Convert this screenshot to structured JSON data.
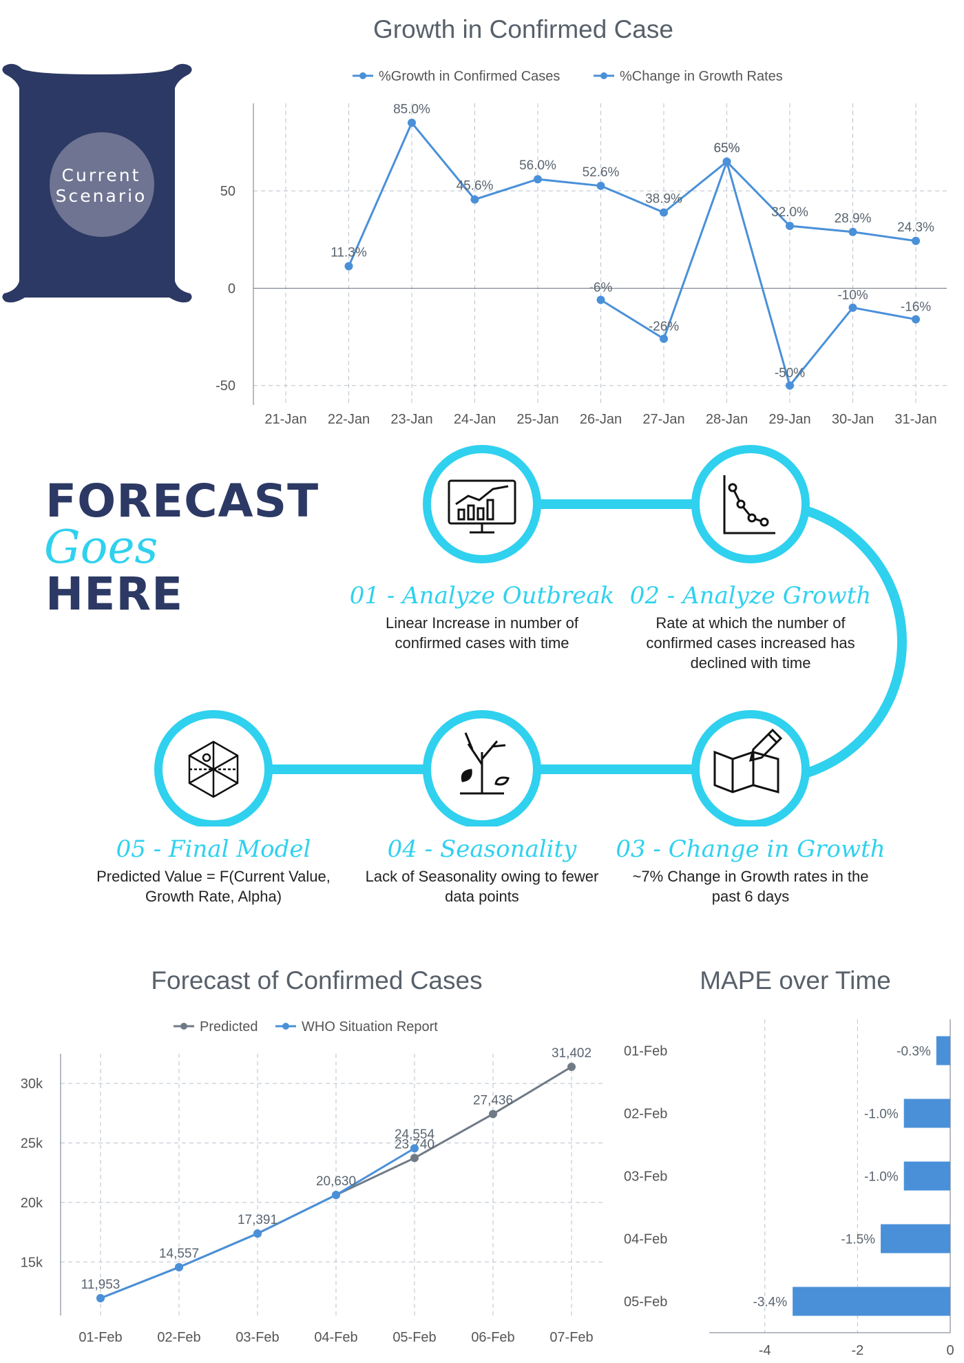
{
  "colors": {
    "navy": "#2c3964",
    "cyan": "#2fd1ee",
    "blue": "#4a90d9",
    "gray": "#707a86"
  },
  "scenario": {
    "line1": "Current",
    "line2": "Scenario"
  },
  "headline": {
    "word1": "FORECAST",
    "word2": "Goes",
    "word3": "HERE"
  },
  "steps": [
    {
      "title": "01 - Analyze Outbreak",
      "desc": "Linear Increase in number of confirmed cases with time",
      "icon": "monitor-chart-icon"
    },
    {
      "title": "02 - Analyze Growth",
      "desc": "Rate at which the number of confirmed cases increased has declined with time",
      "icon": "declining-graph-icon"
    },
    {
      "title": "03 - Change in Growth",
      "desc": "~7% Change in Growth rates in the past 6 days",
      "icon": "map-pencil-icon"
    },
    {
      "title": "04 - Seasonality",
      "desc": "Lack of Seasonality owing to fewer data points",
      "icon": "bare-tree-icon"
    },
    {
      "title": "05 - Final Model",
      "desc": "Predicted Value = F(Current Value, Growth Rate, Alpha)",
      "icon": "geometry-hexagon-icon"
    }
  ],
  "chart_data": [
    {
      "type": "line",
      "title": "Growth in Confirmed Case",
      "categories": [
        "21-Jan",
        "22-Jan",
        "23-Jan",
        "24-Jan",
        "25-Jan",
        "26-Jan",
        "27-Jan",
        "28-Jan",
        "29-Jan",
        "30-Jan",
        "31-Jan"
      ],
      "ylim": [
        -60,
        95
      ],
      "yticks": [
        -50,
        0,
        50
      ],
      "grid": true,
      "legend": "top",
      "series": [
        {
          "name": "%Growth in Confirmed Cases",
          "values": [
            null,
            11.3,
            85.0,
            45.6,
            56.0,
            52.6,
            38.9,
            65.0,
            32.0,
            28.9,
            24.3
          ],
          "labels": [
            null,
            "11.3%",
            "85.0%",
            "45.6%",
            "56.0%",
            "52.6%",
            "38.9%",
            "65%",
            "32.0%",
            "28.9%",
            "24.3%"
          ]
        },
        {
          "name": "%Change in Growth Rates",
          "values": [
            null,
            null,
            null,
            null,
            null,
            -6,
            -26,
            65,
            -50,
            -10,
            -16
          ],
          "labels": [
            null,
            null,
            null,
            null,
            null,
            "-6%",
            "-26%",
            "65%",
            "-50%",
            "-10%",
            "-16%"
          ]
        }
      ]
    },
    {
      "type": "line",
      "title": "Forecast of Confirmed Cases",
      "categories": [
        "01-Feb",
        "02-Feb",
        "03-Feb",
        "04-Feb",
        "05-Feb",
        "06-Feb",
        "07-Feb"
      ],
      "ylim": [
        10500,
        32500
      ],
      "yticks": [
        15000,
        20000,
        25000,
        30000
      ],
      "yticklabels": [
        "15k",
        "20k",
        "25k",
        "30k"
      ],
      "grid": true,
      "legend": "top",
      "series": [
        {
          "name": "Predicted",
          "values": [
            11953,
            14557,
            17391,
            20630,
            23740,
            27436,
            31402
          ],
          "labels": [
            null,
            null,
            null,
            null,
            "23,740",
            "27,436",
            "31,402"
          ]
        },
        {
          "name": "WHO Situation Report",
          "values": [
            11953,
            14557,
            17391,
            20630,
            24554,
            null,
            null
          ],
          "labels": [
            "11,953",
            "14,557",
            "17,391",
            "20,630",
            "24,554",
            null,
            null
          ]
        }
      ]
    },
    {
      "type": "bar",
      "orientation": "horizontal",
      "title": "MAPE over Time",
      "categories": [
        "01-Feb",
        "02-Feb",
        "03-Feb",
        "04-Feb",
        "05-Feb"
      ],
      "values": [
        -0.3,
        -1.0,
        -1.0,
        -1.5,
        -3.4
      ],
      "labels": [
        "-0.3%",
        "-1.0%",
        "-1.0%",
        "-1.5%",
        "-3.4%"
      ],
      "xlim": [
        -5.2,
        0
      ],
      "xticks": [
        -4,
        -2,
        0
      ],
      "grid": true
    }
  ]
}
